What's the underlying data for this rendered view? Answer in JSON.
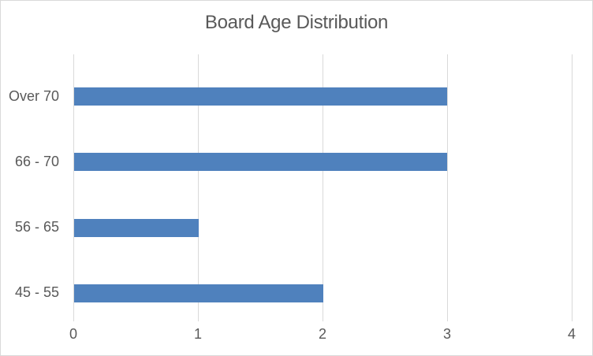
{
  "chart_data": {
    "type": "bar",
    "orientation": "horizontal",
    "title": "Board Age Distribution",
    "categories_top_to_bottom": [
      "Over 70",
      "66 - 70",
      "56 - 65",
      "45 - 55"
    ],
    "values_top_to_bottom": [
      3,
      3,
      1,
      2
    ],
    "xlabel": "",
    "ylabel": "",
    "xlim": [
      0,
      4
    ],
    "x_ticks": [
      "0",
      "1",
      "2",
      "3",
      "4"
    ],
    "grid": "vertical gridlines on",
    "legend": "none",
    "colors": {
      "bar": "#4f81bd",
      "grid": "#d9d9d9",
      "text": "#595959",
      "bg": "#ffffff"
    }
  }
}
